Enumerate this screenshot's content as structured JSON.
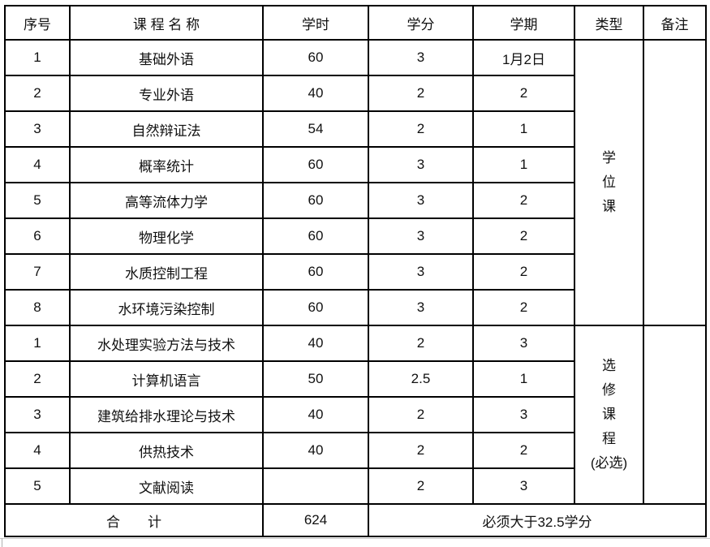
{
  "page": {
    "background": "#ffffff",
    "border_color": "#000000",
    "text_color": "#111111"
  },
  "table": {
    "headers": [
      "序号",
      "课 程 名 称",
      "学时",
      "学分",
      "学期",
      "类型",
      "备注"
    ],
    "degree_type_lines": [
      "学",
      "位",
      "课"
    ],
    "elective_type_lines": [
      "选",
      "修",
      "课",
      "程",
      "(必选)"
    ],
    "degree_courses": [
      {
        "no": "1",
        "name": "基础外语",
        "hours": "60",
        "credits": "3",
        "semester": "1月2日"
      },
      {
        "no": "2",
        "name": "专业外语",
        "hours": "40",
        "credits": "2",
        "semester": "2"
      },
      {
        "no": "3",
        "name": "自然辩证法",
        "hours": "54",
        "credits": "2",
        "semester": "1"
      },
      {
        "no": "4",
        "name": "概率统计",
        "hours": "60",
        "credits": "3",
        "semester": "1"
      },
      {
        "no": "5",
        "name": "高等流体力学",
        "hours": "60",
        "credits": "3",
        "semester": "2"
      },
      {
        "no": "6",
        "name": "物理化学",
        "hours": "60",
        "credits": "3",
        "semester": "2"
      },
      {
        "no": "7",
        "name": "水质控制工程",
        "hours": "60",
        "credits": "3",
        "semester": "2"
      },
      {
        "no": "8",
        "name": "水环境污染控制",
        "hours": "60",
        "credits": "3",
        "semester": "2"
      }
    ],
    "elective_courses": [
      {
        "no": "1",
        "name": "水处理实验方法与技术",
        "hours": "40",
        "credits": "2",
        "semester": "3"
      },
      {
        "no": "2",
        "name": "计算机语言",
        "hours": "50",
        "credits": "2.5",
        "semester": "1"
      },
      {
        "no": "3",
        "name": "建筑给排水理论与技术",
        "hours": "40",
        "credits": "2",
        "semester": "3"
      },
      {
        "no": "4",
        "name": "供热技术",
        "hours": "40",
        "credits": "2",
        "semester": "2"
      },
      {
        "no": "5",
        "name": "文献阅读",
        "hours": "",
        "credits": "2",
        "semester": "3"
      }
    ],
    "total": {
      "label": "合　　计",
      "hours": "624",
      "note": "必须大于32.5学分"
    }
  }
}
